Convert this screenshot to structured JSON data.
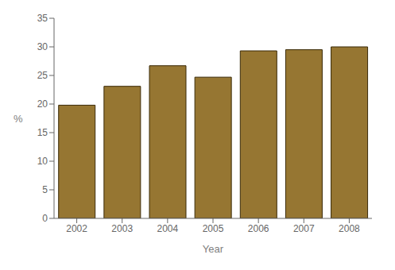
{
  "chart_data": {
    "type": "bar",
    "categories": [
      "2002",
      "2003",
      "2004",
      "2005",
      "2006",
      "2007",
      "2008"
    ],
    "values": [
      19.8,
      23.1,
      26.7,
      24.7,
      29.3,
      29.5,
      30.0
    ],
    "color": "#967632",
    "xlabel": "Year",
    "ylabel": "%",
    "ylim": [
      0,
      35
    ],
    "yticks": [
      0,
      5,
      10,
      15,
      20,
      25,
      30,
      35
    ],
    "grid": false
  }
}
